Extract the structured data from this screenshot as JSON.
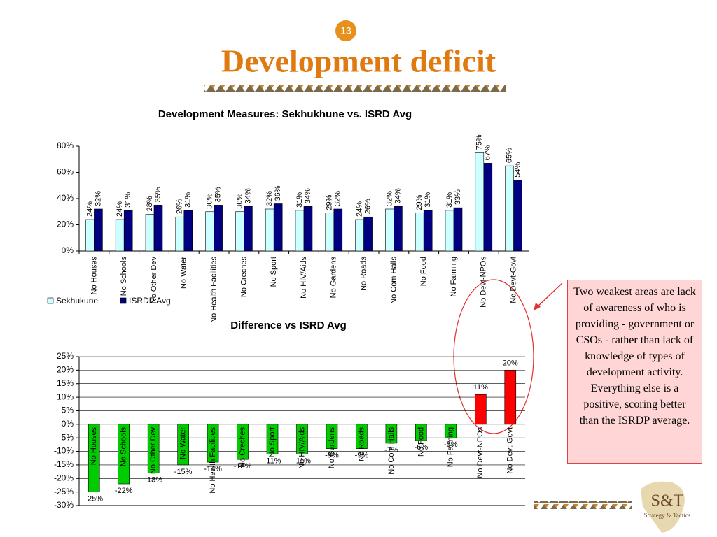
{
  "page_number": "13",
  "title": "Development deficit",
  "note": "Two weakest areas are lack of awareness of who is providing - government or CSOs - rather than lack of knowledge of types of development activity. Everything else is a positive, scoring better than the ISRDP average.",
  "logo": {
    "mark": "S&T",
    "tagline": "Strategy & Tactics"
  },
  "chart_data": [
    {
      "type": "grouped_bar",
      "title": "Development Measures: Sekhukhune vs. ISRD Avg",
      "categories": [
        "No Houses",
        "No Schools",
        "No Other Dev",
        "No Water",
        "No Health Facilities",
        "No Creches",
        "No Sport",
        "No HIV/Aids",
        "No Gardens",
        "No Roads",
        "No Com Halls",
        "No Food",
        "No Farming",
        "No Devt-NPOs",
        "No Devt-Govt"
      ],
      "series": [
        {
          "name": "Sekhukune",
          "color": "#ccffff",
          "values": [
            24,
            24,
            28,
            26,
            30,
            30,
            32,
            31,
            29,
            24,
            32,
            29,
            31,
            75,
            65
          ],
          "value_labels": [
            "24%",
            "24%",
            "28%",
            "26%",
            "30%",
            "30%",
            "32%",
            "31%",
            "29%",
            "24%",
            "32%",
            "29%",
            "31%",
            "75%",
            "65%"
          ]
        },
        {
          "name": "ISRDP Avg",
          "color": "#000080",
          "values": [
            32,
            31,
            35,
            31,
            35,
            34,
            36,
            34,
            32,
            26,
            34,
            31,
            33,
            67,
            54
          ],
          "value_labels": [
            "32%",
            "31%",
            "35%",
            "31%",
            "35%",
            "34%",
            "36%",
            "34%",
            "32%",
            "26%",
            "34%",
            "31%",
            "33%",
            "67%",
            "54%"
          ]
        }
      ],
      "ylim": [
        0,
        80
      ],
      "yticks": [
        {
          "value": 0,
          "label": "0%"
        },
        {
          "value": 20,
          "label": "20%"
        },
        {
          "value": 40,
          "label": "40%"
        },
        {
          "value": 60,
          "label": "60%"
        },
        {
          "value": 80,
          "label": "80%"
        }
      ],
      "grid": false,
      "legend": "bottom-left"
    },
    {
      "type": "bar",
      "title": "Difference vs ISRD Avg",
      "categories": [
        "No Houses",
        "No Schools",
        "No Other Dev",
        "No Water",
        "No Health Facilities",
        "No Creches",
        "No Sport",
        "No HIV/Aids",
        "No Gardens",
        "No Roads",
        "No Com Halls",
        "No Food",
        "No Farming",
        "No Devt-NPOs",
        "No Devt-Govt"
      ],
      "values": [
        -25,
        -22,
        -18,
        -15,
        -14,
        -13,
        -11,
        -11,
        -9,
        -9,
        -7,
        -6,
        -5,
        11,
        20
      ],
      "value_labels": [
        "-25%",
        "-22%",
        "-18%",
        "-15%",
        "-14%",
        "-13%",
        "-11%",
        "-11%",
        "-9%",
        "-9%",
        "-7%",
        "-6%",
        "-5%",
        "11%",
        "20%"
      ],
      "colors": [
        "#00cc00",
        "#00cc00",
        "#00cc00",
        "#00cc00",
        "#00cc00",
        "#00cc00",
        "#00cc00",
        "#00cc00",
        "#00cc00",
        "#00cc00",
        "#00cc00",
        "#00cc00",
        "#00cc00",
        "#ff0000",
        "#ff0000"
      ],
      "ylim": [
        -30,
        25
      ],
      "yticks": [
        {
          "value": -30,
          "label": "-30%"
        },
        {
          "value": -25,
          "label": "-25%"
        },
        {
          "value": -20,
          "label": "-20%"
        },
        {
          "value": -15,
          "label": "-15%"
        },
        {
          "value": -10,
          "label": "-10%"
        },
        {
          "value": -5,
          "label": "-5%"
        },
        {
          "value": 0,
          "label": "0%"
        },
        {
          "value": 5,
          "label": "5%"
        },
        {
          "value": 10,
          "label": "10%"
        },
        {
          "value": 15,
          "label": "15%"
        },
        {
          "value": 20,
          "label": "20%"
        },
        {
          "value": 25,
          "label": "25%"
        }
      ],
      "grid": true
    }
  ]
}
